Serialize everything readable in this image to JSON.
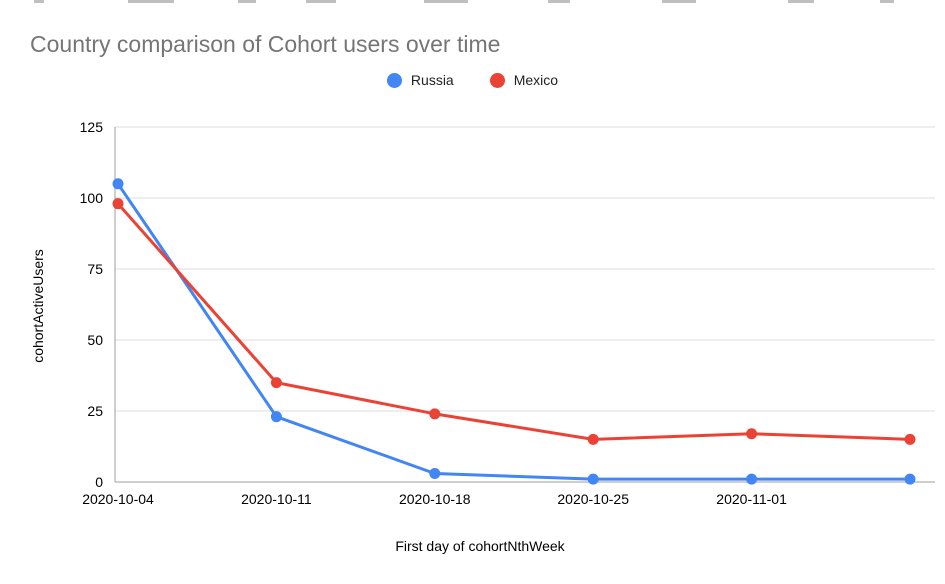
{
  "chart_data": {
    "type": "line",
    "title": "Country comparison of Cohort users over time",
    "xlabel": "First day of cohortNthWeek",
    "ylabel": "cohortActiveUsers",
    "x_tick_labels": [
      "2020-10-04",
      "2020-10-11",
      "2020-10-18",
      "2020-10-25",
      "2020-11-01",
      ""
    ],
    "y_ticks": [
      0,
      25,
      50,
      75,
      100,
      125
    ],
    "ylim": [
      0,
      125
    ],
    "grid": "horizontal",
    "legend_position": "top-center",
    "series": [
      {
        "name": "Russia",
        "color": "#4285F4",
        "values": [
          105,
          23,
          3,
          1,
          1,
          1
        ]
      },
      {
        "name": "Mexico",
        "color": "#EA4335",
        "values": [
          98,
          35,
          24,
          15,
          17,
          15
        ]
      }
    ],
    "colors": {
      "title_text": "#757575",
      "axis_line": "#9e9e9e",
      "gridline": "#dcdcdc",
      "tick_text": "#000000"
    }
  }
}
